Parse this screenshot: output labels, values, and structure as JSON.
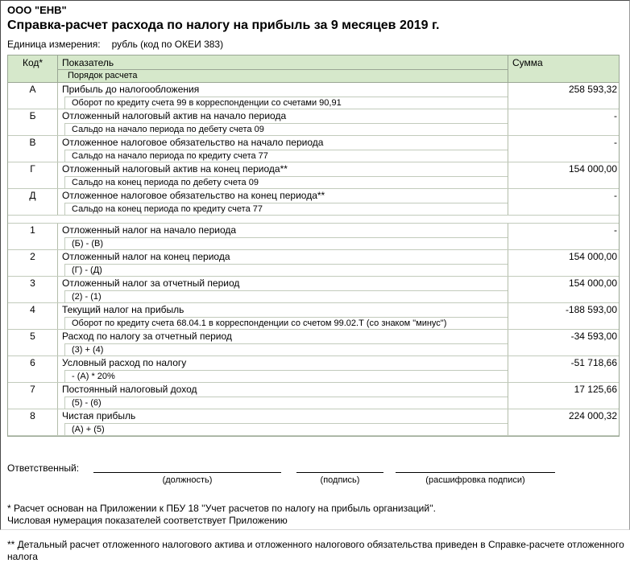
{
  "header": {
    "company": "ООО \"ЕНВ\"",
    "title": "Справка-расчет расхода по налогу на прибыль за 9 месяцев 2019 г.",
    "unit_label": "Единица измерения:",
    "unit_value": "рубль (код по ОКЕИ 383)"
  },
  "table": {
    "columns": {
      "code": "Код*",
      "indicator": "Показатель",
      "calc_order": "Порядок расчета",
      "sum": "Сумма"
    },
    "letter_rows": [
      {
        "code": "А",
        "indicator": "Прибыль до налогообложения",
        "calc": "Оборот по кредиту счета 99 в корреспонденции со счетами 90,91",
        "sum": "258 593,32"
      },
      {
        "code": "Б",
        "indicator": "Отложенный налоговый актив на начало периода",
        "calc": "Сальдо на начало периода по дебету счета 09",
        "sum": "-"
      },
      {
        "code": "В",
        "indicator": "Отложенное налоговое обязательство на начало периода",
        "calc": "Сальдо на начало периода по кредиту счета 77",
        "sum": "-"
      },
      {
        "code": "Г",
        "indicator": "Отложенный налоговый актив на конец периода**",
        "calc": "Сальдо на конец периода по дебету счета 09",
        "sum": "154 000,00"
      },
      {
        "code": "Д",
        "indicator": "Отложенное налоговое обязательство на конец периода**",
        "calc": "Сальдо на конец периода по кредиту счета 77",
        "sum": "-"
      }
    ],
    "number_rows": [
      {
        "code": "1",
        "indicator": "Отложенный налог на начало периода",
        "calc": "(Б) - (В)",
        "sum": "-"
      },
      {
        "code": "2",
        "indicator": "Отложенный налог на конец периода",
        "calc": "(Г) - (Д)",
        "sum": "154 000,00"
      },
      {
        "code": "3",
        "indicator": "Отложенный налог за отчетный период",
        "calc": "(2) - (1)",
        "sum": "154 000,00"
      },
      {
        "code": "4",
        "indicator": "Текущий налог на прибыль",
        "calc": "Оборот по кредиту счета 68.04.1  в корреспонденции со счетом 99.02.Т (со знаком \"минус\")",
        "sum": "-188 593,00"
      },
      {
        "code": "5",
        "indicator": "Расход по налогу за отчетный период",
        "calc": "(3) + (4)",
        "sum": "-34 593,00"
      },
      {
        "code": "6",
        "indicator": "Условный расход по налогу",
        "calc": "- (А) * 20%",
        "sum": "-51 718,66"
      },
      {
        "code": "7",
        "indicator": "Постоянный налоговый доход",
        "calc": "(5) - (6)",
        "sum": "17 125,66"
      },
      {
        "code": "8",
        "indicator": "Чистая прибыль",
        "calc": "(А) + (5)",
        "sum": "224 000,32"
      }
    ]
  },
  "footer": {
    "responsible_label": "Ответственный:",
    "sig_captions": [
      "(должность)",
      "(подпись)",
      "(расшифровка подписи)"
    ],
    "footnote_star_line1": "* Расчет основан на Приложении к ПБУ 18 ''Учет расчетов по налогу на прибыль организаций''.",
    "footnote_star_line2": "Числовая нумерация показателей соответствует Приложению",
    "footnote_dstar": "** Детальный расчет отложенного налогового актива и отложенного налогового обязательства приведен в Справке-расчете отложенного налога"
  },
  "colors": {
    "table_header_bg": "#d6e8cb",
    "border_dark": "#9aa694",
    "border_light": "#c2cbbc",
    "page_border": "#4a4a4a"
  }
}
